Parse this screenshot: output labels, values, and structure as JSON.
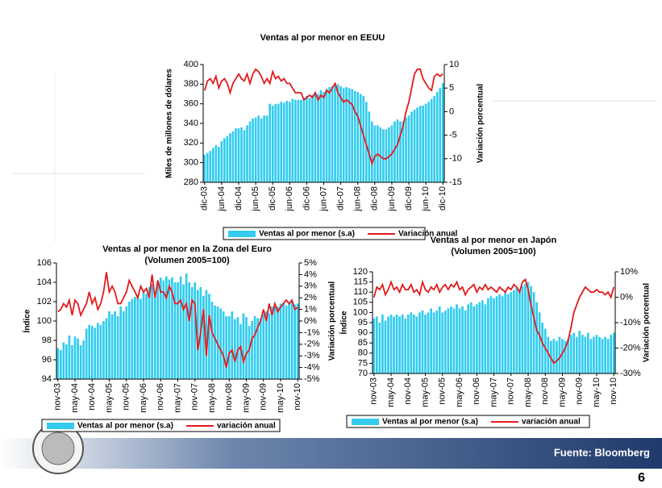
{
  "chart_data": [
    {
      "type": "combo",
      "title": "Ventas al por menor en EEUU",
      "ylabel": "Miles de millones de dólares",
      "y2label": "Variación porcentual",
      "categories": [
        "dic-03",
        null,
        null,
        null,
        null,
        null,
        "jun-04",
        null,
        null,
        null,
        null,
        null,
        "dic-04",
        null,
        null,
        null,
        null,
        null,
        "jun-05",
        null,
        null,
        null,
        null,
        null,
        "dic-05",
        null,
        null,
        null,
        null,
        null,
        "jun-06",
        null,
        null,
        null,
        null,
        null,
        "dic-06",
        null,
        null,
        null,
        null,
        null,
        "jun-07",
        null,
        null,
        null,
        null,
        null,
        "dic-07",
        null,
        null,
        null,
        null,
        null,
        "jun-08",
        null,
        null,
        null,
        null,
        null,
        "dic-08",
        null,
        null,
        null,
        null,
        null,
        "jun-09",
        null,
        null,
        null,
        null,
        null,
        "dic-09",
        null,
        null,
        null,
        null,
        null,
        "jun-10",
        null,
        null,
        null,
        null,
        null,
        "dic-10"
      ],
      "series": [
        {
          "name": "Ventas al por menor (s.a)",
          "type": "bar",
          "color": "#33ccee",
          "values": [
            308,
            310,
            312,
            315,
            318,
            316,
            322,
            325,
            327,
            330,
            332,
            335,
            335,
            336,
            333,
            338,
            342,
            345,
            346,
            348,
            345,
            348,
            348,
            360,
            358,
            360,
            360,
            362,
            361,
            363,
            362,
            365,
            364,
            364,
            364,
            366,
            368,
            366,
            369,
            372,
            370,
            374,
            372,
            375,
            377,
            378,
            378,
            380,
            378,
            376,
            377,
            376,
            375,
            373,
            372,
            370,
            368,
            362,
            352,
            342,
            338,
            338,
            336,
            334,
            334,
            336,
            338,
            342,
            344,
            342,
            342,
            346,
            348,
            352,
            354,
            356,
            358,
            358,
            360,
            362,
            365,
            368,
            372,
            376,
            381
          ]
        },
        {
          "name": "Variación anual",
          "type": "line",
          "axis": "y2",
          "color": "#e31a1c",
          "values": [
            4.5,
            6.5,
            7,
            6,
            7.5,
            5,
            6.5,
            7,
            6,
            4,
            6,
            7,
            8,
            7,
            6.5,
            8,
            6,
            8,
            9,
            8.5,
            7.5,
            6,
            7,
            6,
            8.5,
            7,
            7.5,
            6.5,
            7,
            6,
            6,
            5,
            4,
            4,
            4,
            2.5,
            3,
            3.5,
            3,
            4,
            2.5,
            3.5,
            3,
            4.5,
            4,
            5,
            6,
            4,
            3,
            2,
            2.5,
            2,
            1.5,
            0,
            -1,
            -3,
            -5,
            -7,
            -9,
            -11,
            -9.5,
            -9,
            -9.5,
            -10,
            -10,
            -9.5,
            -9,
            -8,
            -7,
            -5,
            -3,
            0,
            2,
            5,
            8,
            9,
            9,
            7,
            6,
            5,
            4.5,
            7.5,
            8,
            7.5,
            8
          ]
        }
      ],
      "ylim": [
        280,
        400
      ],
      "yticks": [
        280,
        300,
        320,
        340,
        360,
        380,
        400
      ],
      "y2lim": [
        -15,
        10
      ],
      "y2ticks": [
        -15,
        -10,
        -5,
        0,
        5,
        10
      ]
    },
    {
      "type": "combo",
      "title": "Ventas al por menor en la Zona del Euro",
      "subtitle": "(Volumen 2005=100)",
      "ylabel": "Índice",
      "y2label": "Variación porcentual",
      "categories": [
        "nov-03",
        null,
        null,
        null,
        null,
        null,
        "may-04",
        null,
        null,
        null,
        null,
        null,
        "nov-04",
        null,
        null,
        null,
        null,
        null,
        "may-05",
        null,
        null,
        null,
        null,
        null,
        "nov-05",
        null,
        null,
        null,
        null,
        null,
        "may-06",
        null,
        null,
        null,
        null,
        null,
        "nov-06",
        null,
        null,
        null,
        null,
        null,
        "may-07",
        null,
        null,
        null,
        null,
        null,
        "nov-07",
        null,
        null,
        null,
        null,
        null,
        "may-08",
        null,
        null,
        null,
        null,
        null,
        "nov-08",
        null,
        null,
        null,
        null,
        null,
        "may-09",
        null,
        null,
        null,
        null,
        null,
        "nov-09",
        null,
        null,
        null,
        null,
        null,
        "may-10",
        null,
        null,
        null,
        null,
        null,
        "nov-10"
      ],
      "series": [
        {
          "name": "Ventas al por menor (s.a)",
          "type": "bar",
          "color": "#33ccee",
          "values": [
            97.2,
            97,
            97.8,
            97.6,
            98.5,
            97.5,
            98.4,
            98.2,
            97.5,
            98,
            99.2,
            99.6,
            99.5,
            99.3,
            99.8,
            99.6,
            100,
            100.3,
            101,
            100.7,
            101,
            100.5,
            101.5,
            101,
            101.5,
            102,
            102.3,
            102.5,
            102.7,
            102.3,
            103,
            102.8,
            103.5,
            103.8,
            102.5,
            104,
            104.5,
            104.2,
            104.6,
            104.3,
            104.5,
            104,
            104,
            104.6,
            103.8,
            104.9,
            104,
            103.5,
            104,
            103.2,
            103.5,
            102.6,
            103.2,
            102.8,
            102,
            101.6,
            101.5,
            101.3,
            101,
            100.5,
            100.5,
            101,
            100.2,
            100.4,
            99.7,
            100.8,
            100.4,
            99.5,
            100,
            100.5,
            100.3,
            100.3,
            100.7,
            101,
            100.8,
            101.5,
            101.8,
            101.5,
            101.8,
            101.9,
            101.6,
            101.8,
            102,
            101.7,
            101.8
          ]
        },
        {
          "name": "variación anual",
          "type": "line",
          "axis": "y2",
          "color": "#e31a1c",
          "values": [
            0.8,
            1,
            1.5,
            1.2,
            1.8,
            0.5,
            1.8,
            1.5,
            0.5,
            1,
            1.5,
            2.5,
            1.5,
            2,
            1,
            1.5,
            2.5,
            4.2,
            2.5,
            3,
            2.5,
            1.5,
            1.5,
            2,
            2.5,
            3.5,
            3,
            2.5,
            2,
            3,
            2.5,
            2.8,
            2,
            4,
            2,
            3.5,
            2.5,
            2.5,
            2,
            3,
            2.5,
            1.5,
            1.5,
            1.8,
            1,
            1.5,
            0,
            1.8,
            1.5,
            -2.5,
            -1,
            1,
            -3,
            0.5,
            -1,
            -1.5,
            -2,
            -2.5,
            -3,
            -4,
            -2.8,
            -2.5,
            -3.5,
            -2.5,
            -2.2,
            -3.5,
            -2.8,
            -2.5,
            -1.5,
            -1.2,
            -0.5,
            0,
            1,
            0,
            1.5,
            0.5,
            1.5,
            0.8,
            1.2,
            1.5,
            1.8,
            1.5,
            1.8,
            1,
            1.2
          ]
        }
      ],
      "ylim": [
        94,
        106
      ],
      "yticks": [
        94,
        96,
        98,
        100,
        102,
        104,
        106
      ],
      "y2lim": [
        -5,
        5
      ],
      "y2ticks": [
        {
          "value": -5,
          "label": "-5%"
        },
        {
          "value": -4,
          "label": "-4%"
        },
        {
          "value": -3,
          "label": "-3%"
        },
        {
          "value": -2,
          "label": "-2%"
        },
        {
          "value": -1,
          "label": "-1%"
        },
        {
          "value": 0,
          "label": "0%"
        },
        {
          "value": 1,
          "label": "1%"
        },
        {
          "value": 2,
          "label": "2%"
        },
        {
          "value": 3,
          "label": "3%"
        },
        {
          "value": 4,
          "label": "4%"
        },
        {
          "value": 5,
          "label": "5%"
        }
      ]
    },
    {
      "type": "combo",
      "title": "Ventas al por menor en Japón",
      "subtitle": "(Volumen 2005=100)",
      "ylabel": "Índice",
      "y2label": "Variación porcentual",
      "categories": [
        "nov-03",
        null,
        null,
        null,
        null,
        null,
        "may-04",
        null,
        null,
        null,
        null,
        null,
        "nov-04",
        null,
        null,
        null,
        null,
        null,
        "may-05",
        null,
        null,
        null,
        null,
        null,
        "nov-05",
        null,
        null,
        null,
        null,
        null,
        "may-06",
        null,
        null,
        null,
        null,
        null,
        "nov-06",
        null,
        null,
        null,
        null,
        null,
        "may-07",
        null,
        null,
        null,
        null,
        null,
        "nov-07",
        null,
        null,
        null,
        null,
        null,
        "may-08",
        null,
        null,
        null,
        null,
        null,
        "nov-08",
        null,
        null,
        null,
        null,
        null,
        "may-09",
        null,
        null,
        null,
        null,
        null,
        "nov-09",
        null,
        null,
        null,
        null,
        null,
        "may-10",
        null,
        null,
        null,
        null,
        null,
        "nov-10"
      ],
      "series": [
        {
          "name": "Ventas al por menor (s.a)",
          "type": "bar",
          "color": "#33ccee",
          "values": [
            97,
            98,
            95,
            99,
            96,
            98,
            99,
            98,
            99,
            98,
            99,
            97,
            99,
            100,
            99,
            98,
            100,
            101,
            99,
            100,
            102,
            100,
            101,
            103,
            100,
            101,
            102,
            103,
            102,
            104,
            102,
            103,
            101,
            104,
            105,
            103,
            104,
            105,
            106,
            104,
            107,
            108,
            107,
            108,
            109,
            108,
            110,
            109,
            110,
            111,
            112,
            111,
            113,
            114,
            115,
            113,
            110,
            105,
            100,
            95,
            92,
            88,
            86,
            87,
            86,
            88,
            87,
            86,
            87,
            89,
            90,
            88,
            91,
            89,
            88,
            90,
            87,
            88,
            89,
            88,
            87,
            88,
            87,
            89,
            90
          ]
        },
        {
          "name": "variación anual",
          "type": "line",
          "axis": "y2",
          "color": "#e31a1c",
          "values": [
            0,
            4,
            3,
            5,
            1,
            3,
            6,
            3,
            4,
            2,
            5,
            3,
            3,
            5,
            2,
            3,
            1,
            6,
            3,
            2,
            4,
            3,
            5,
            2,
            4,
            5,
            3,
            5,
            4,
            6,
            3,
            4,
            1,
            3,
            4,
            5,
            2,
            4,
            3,
            5,
            3,
            4,
            3,
            2,
            4,
            3,
            2,
            4,
            3,
            5,
            4,
            2,
            6,
            7,
            3,
            -3,
            -8,
            -13,
            -15,
            -18,
            -20,
            -22,
            -24,
            -26,
            -25,
            -24,
            -22,
            -20,
            -17,
            -12,
            -6,
            -3,
            0,
            2,
            4,
            3,
            2,
            2,
            3,
            2,
            2,
            1,
            2,
            0,
            4
          ]
        }
      ],
      "ylim": [
        70,
        120
      ],
      "yticks": [
        70,
        75,
        80,
        85,
        90,
        95,
        100,
        105,
        110,
        115,
        120
      ],
      "y2lim": [
        -30,
        10
      ],
      "y2ticks": [
        {
          "value": -30,
          "label": "-30%"
        },
        {
          "value": -20,
          "label": "-20%"
        },
        {
          "value": -10,
          "label": "-10%"
        },
        {
          "value": 0,
          "label": "0%"
        },
        {
          "value": 10,
          "label": "10%"
        }
      ]
    }
  ],
  "footer": {
    "source": "Fuente: Bloomberg",
    "page": "6"
  }
}
